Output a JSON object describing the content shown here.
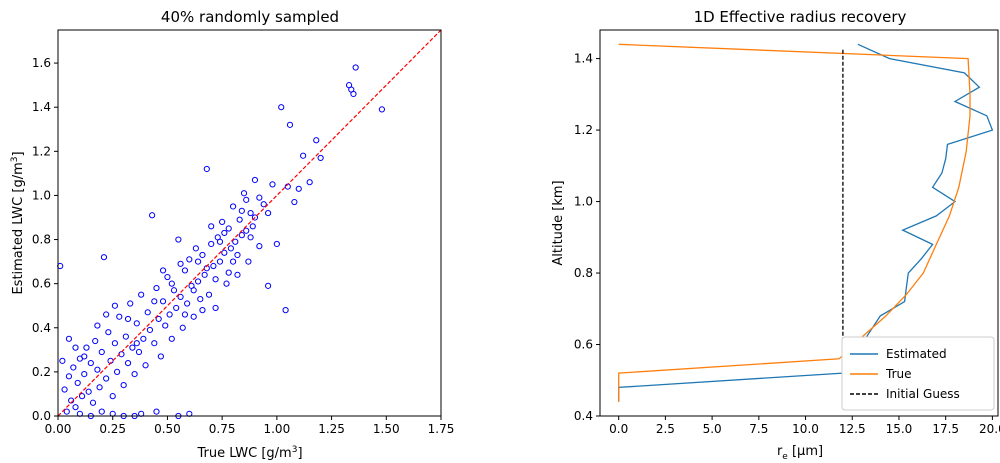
{
  "chart_data": [
    {
      "type": "scatter",
      "title": "40% randomly sampled",
      "xlabel": "True LWC   [g/m",
      "xlabel_sup": "3",
      "xlabel_end": "]",
      "ylabel": "Estimated LWC   [g/m",
      "ylabel_sup": "3",
      "ylabel_end": "]",
      "xlim": [
        0,
        1.75
      ],
      "ylim": [
        0,
        1.75
      ],
      "xticks": [
        "0.00",
        "0.25",
        "0.50",
        "0.75",
        "1.00",
        "1.25",
        "1.50",
        "1.75"
      ],
      "yticks": [
        "0.0",
        "0.2",
        "0.4",
        "0.6",
        "0.8",
        "1.0",
        "1.2",
        "1.4",
        "1.6"
      ],
      "marker_color": "#0000ff",
      "reference_line": {
        "style": "dashed",
        "color": "#ff0000",
        "from": [
          0,
          0
        ],
        "to": [
          1.75,
          1.75
        ]
      },
      "points": [
        [
          0.01,
          0.68
        ],
        [
          0.02,
          0.25
        ],
        [
          0.03,
          0.12
        ],
        [
          0.04,
          0.02
        ],
        [
          0.05,
          0.18
        ],
        [
          0.06,
          0.07
        ],
        [
          0.07,
          0.22
        ],
        [
          0.08,
          0.04
        ],
        [
          0.09,
          0.15
        ],
        [
          0.1,
          0.26
        ],
        [
          0.11,
          0.09
        ],
        [
          0.12,
          0.19
        ],
        [
          0.13,
          0.31
        ],
        [
          0.14,
          0.11
        ],
        [
          0.15,
          0.24
        ],
        [
          0.16,
          0.06
        ],
        [
          0.17,
          0.34
        ],
        [
          0.18,
          0.21
        ],
        [
          0.19,
          0.13
        ],
        [
          0.2,
          0.29
        ],
        [
          0.21,
          0.72
        ],
        [
          0.22,
          0.17
        ],
        [
          0.23,
          0.38
        ],
        [
          0.24,
          0.25
        ],
        [
          0.25,
          0.09
        ],
        [
          0.26,
          0.33
        ],
        [
          0.27,
          0.2
        ],
        [
          0.28,
          0.45
        ],
        [
          0.29,
          0.28
        ],
        [
          0.3,
          0.14
        ],
        [
          0.31,
          0.36
        ],
        [
          0.32,
          0.24
        ],
        [
          0.33,
          0.51
        ],
        [
          0.34,
          0.31
        ],
        [
          0.35,
          0.19
        ],
        [
          0.36,
          0.42
        ],
        [
          0.37,
          0.29
        ],
        [
          0.38,
          0.55
        ],
        [
          0.39,
          0.35
        ],
        [
          0.4,
          0.23
        ],
        [
          0.41,
          0.47
        ],
        [
          0.42,
          0.39
        ],
        [
          0.43,
          0.91
        ],
        [
          0.44,
          0.33
        ],
        [
          0.45,
          0.58
        ],
        [
          0.46,
          0.44
        ],
        [
          0.47,
          0.27
        ],
        [
          0.48,
          0.52
        ],
        [
          0.49,
          0.41
        ],
        [
          0.5,
          0.63
        ],
        [
          0.51,
          0.46
        ],
        [
          0.52,
          0.35
        ],
        [
          0.53,
          0.57
        ],
        [
          0.54,
          0.49
        ],
        [
          0.55,
          0.8
        ],
        [
          0.56,
          0.54
        ],
        [
          0.57,
          0.4
        ],
        [
          0.58,
          0.66
        ],
        [
          0.59,
          0.51
        ],
        [
          0.6,
          0.71
        ],
        [
          0.61,
          0.59
        ],
        [
          0.62,
          0.45
        ],
        [
          0.63,
          0.76
        ],
        [
          0.64,
          0.61
        ],
        [
          0.65,
          0.53
        ],
        [
          0.66,
          0.73
        ],
        [
          0.67,
          0.64
        ],
        [
          0.68,
          1.12
        ],
        [
          0.69,
          0.55
        ],
        [
          0.7,
          0.78
        ],
        [
          0.71,
          0.68
        ],
        [
          0.72,
          0.49
        ],
        [
          0.73,
          0.81
        ],
        [
          0.74,
          0.7
        ],
        [
          0.75,
          0.88
        ],
        [
          0.76,
          0.74
        ],
        [
          0.77,
          0.6
        ],
        [
          0.78,
          0.85
        ],
        [
          0.79,
          0.76
        ],
        [
          0.8,
          0.95
        ],
        [
          0.81,
          0.79
        ],
        [
          0.82,
          0.64
        ],
        [
          0.83,
          0.89
        ],
        [
          0.84,
          0.82
        ],
        [
          0.85,
          1.01
        ],
        [
          0.86,
          0.84
        ],
        [
          0.87,
          0.7
        ],
        [
          0.88,
          0.92
        ],
        [
          0.89,
          0.86
        ],
        [
          0.9,
          1.07
        ],
        [
          0.92,
          0.77
        ],
        [
          0.94,
          0.96
        ],
        [
          0.96,
          0.59
        ],
        [
          0.98,
          1.05
        ],
        [
          1.0,
          0.78
        ],
        [
          1.02,
          1.4
        ],
        [
          1.04,
          0.48
        ],
        [
          1.06,
          1.32
        ],
        [
          1.08,
          0.97
        ],
        [
          1.1,
          1.03
        ],
        [
          1.12,
          1.18
        ],
        [
          1.15,
          1.06
        ],
        [
          1.18,
          1.25
        ],
        [
          1.2,
          1.17
        ],
        [
          1.33,
          1.5
        ],
        [
          1.34,
          1.48
        ],
        [
          1.35,
          1.46
        ],
        [
          1.36,
          1.58
        ],
        [
          1.48,
          1.39
        ],
        [
          1.05,
          1.04
        ],
        [
          0.15,
          0.0
        ],
        [
          0.25,
          0.01
        ],
        [
          0.35,
          0.0
        ],
        [
          0.45,
          0.02
        ],
        [
          0.55,
          0.0
        ],
        [
          0.38,
          0.01
        ],
        [
          0.6,
          0.01
        ],
        [
          0.2,
          0.02
        ],
        [
          0.3,
          0.0
        ],
        [
          0.1,
          0.01
        ],
        [
          0.05,
          0.35
        ],
        [
          0.08,
          0.31
        ],
        [
          0.12,
          0.27
        ],
        [
          0.18,
          0.41
        ],
        [
          0.22,
          0.46
        ],
        [
          0.26,
          0.5
        ],
        [
          0.32,
          0.44
        ],
        [
          0.36,
          0.33
        ],
        [
          0.44,
          0.52
        ],
        [
          0.48,
          0.66
        ],
        [
          0.52,
          0.6
        ],
        [
          0.56,
          0.69
        ],
        [
          0.62,
          0.57
        ],
        [
          0.66,
          0.48
        ],
        [
          0.7,
          0.86
        ],
        [
          0.74,
          0.79
        ],
        [
          0.78,
          0.65
        ],
        [
          0.82,
          0.73
        ],
        [
          0.86,
          0.98
        ],
        [
          0.9,
          0.9
        ],
        [
          0.58,
          0.46
        ],
        [
          0.64,
          0.7
        ],
        [
          0.68,
          0.67
        ],
        [
          0.72,
          0.62
        ],
        [
          0.76,
          0.83
        ],
        [
          0.8,
          0.7
        ],
        [
          0.84,
          0.93
        ],
        [
          0.88,
          0.81
        ],
        [
          0.92,
          0.99
        ],
        [
          0.96,
          0.92
        ]
      ]
    },
    {
      "type": "line",
      "title": "1D Effective radius recovery",
      "xlabel": "r",
      "xlabel_sub": "e",
      "xlabel_end": " [μm]",
      "ylabel": "Altitude [km]",
      "xlim": [
        -1,
        20.3
      ],
      "ylim": [
        0.4,
        1.48
      ],
      "xticks": [
        "0.0",
        "2.5",
        "5.0",
        "7.5",
        "10.0",
        "12.5",
        "15.0",
        "17.5",
        "20.0"
      ],
      "yticks": [
        "0.4",
        "0.6",
        "0.8",
        "1.0",
        "1.2",
        "1.4"
      ],
      "legend_position": "lower-right",
      "series": [
        {
          "name": "Estimated",
          "color": "#1f77b4",
          "style": "solid",
          "points": [
            [
              0,
              0.44
            ],
            [
              0,
              0.48
            ],
            [
              12,
              0.52
            ],
            [
              12.4,
              0.56
            ],
            [
              13.0,
              0.6
            ],
            [
              13.5,
              0.64
            ],
            [
              14.0,
              0.68
            ],
            [
              15.3,
              0.72
            ],
            [
              15.4,
              0.76
            ],
            [
              15.5,
              0.8
            ],
            [
              16.2,
              0.84
            ],
            [
              16.8,
              0.88
            ],
            [
              15.2,
              0.92
            ],
            [
              17.0,
              0.96
            ],
            [
              18.0,
              1.0
            ],
            [
              16.8,
              1.04
            ],
            [
              17.3,
              1.08
            ],
            [
              17.5,
              1.12
            ],
            [
              17.6,
              1.16
            ],
            [
              20.0,
              1.2
            ],
            [
              19.7,
              1.24
            ],
            [
              18.0,
              1.28
            ],
            [
              19.3,
              1.32
            ],
            [
              18.5,
              1.36
            ],
            [
              14.5,
              1.4
            ],
            [
              12.8,
              1.44
            ]
          ]
        },
        {
          "name": "True",
          "color": "#ff7f0e",
          "style": "solid",
          "points": [
            [
              0,
              0.44
            ],
            [
              0,
              0.52
            ],
            [
              11.8,
              0.56
            ],
            [
              13.0,
              0.62
            ],
            [
              14.3,
              0.68
            ],
            [
              15.4,
              0.74
            ],
            [
              16.3,
              0.8
            ],
            [
              17.0,
              0.88
            ],
            [
              17.7,
              0.96
            ],
            [
              18.2,
              1.04
            ],
            [
              18.6,
              1.14
            ],
            [
              18.8,
              1.24
            ],
            [
              18.8,
              1.3
            ],
            [
              18.7,
              1.4
            ],
            [
              0,
              1.44
            ]
          ]
        },
        {
          "name": "Initial Guess",
          "color": "#000000",
          "style": "dashed",
          "points": [
            [
              12,
              0.44
            ],
            [
              12,
              1.43
            ]
          ]
        }
      ]
    }
  ]
}
